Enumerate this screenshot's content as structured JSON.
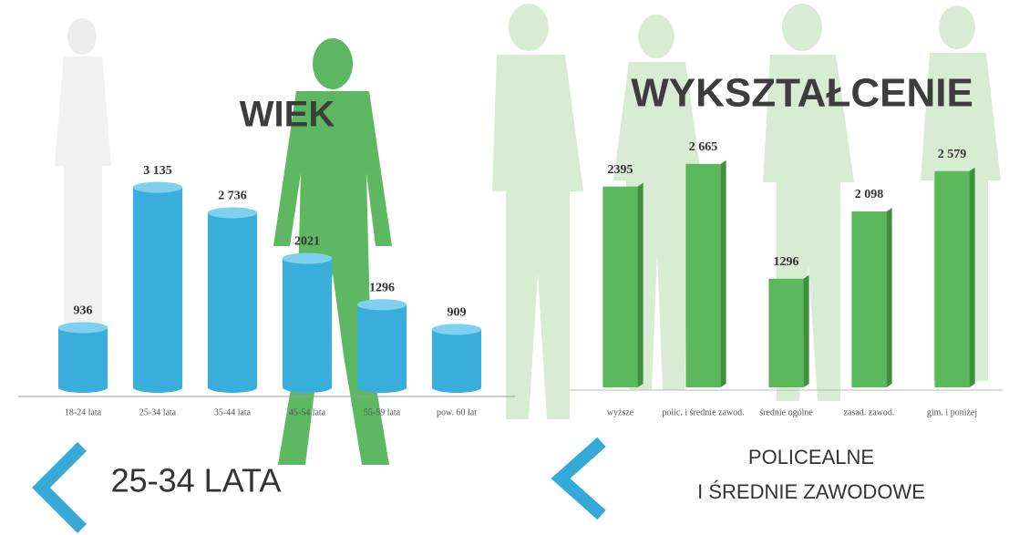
{
  "chart_data": [
    {
      "type": "cylinder",
      "title": "WIEK",
      "categories": [
        "18-24 lata",
        "25-34 lata",
        "35-44 lata",
        "45-54 lata",
        "55-59 lata",
        "pow. 60 lat"
      ],
      "values": [
        936,
        3135,
        2736,
        2021,
        1296,
        909
      ],
      "value_labels": [
        "936",
        "3 135",
        "2 736",
        "2021",
        "1296",
        "909"
      ],
      "color": "#3aaedb",
      "ylim": [
        0,
        3500
      ],
      "highlight": [
        "25-34 LATA"
      ]
    },
    {
      "type": "bar",
      "title": "WYKSZTAŁCENIE",
      "categories": [
        "wyższe",
        "polic. i średnie zawod.",
        "średnie ogólne",
        "zasad. zawod.",
        "gim. i poniżej"
      ],
      "values": [
        2395,
        2665,
        1296,
        2098,
        2579
      ],
      "value_labels": [
        "2395",
        "2 665",
        "1296",
        "2 098",
        "2 579"
      ],
      "color": "#5cb85c",
      "ylim": [
        0,
        3000
      ],
      "highlight": [
        "POLICEALNE",
        "I ŚREDNIE ZAWODOWE"
      ]
    }
  ]
}
